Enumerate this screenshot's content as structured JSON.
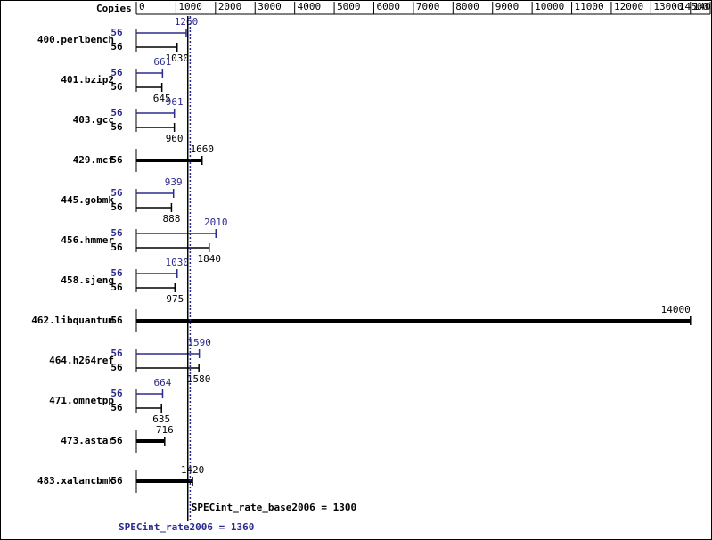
{
  "chart_data": {
    "type": "bar",
    "orientation": "horizontal",
    "copies_label": "Copies",
    "categories": [
      "400.perlbench",
      "401.bzip2",
      "403.gcc",
      "429.mcf",
      "445.gobmk",
      "456.hmmer",
      "458.sjeng",
      "462.libquantum",
      "464.h264ref",
      "471.omnetpp",
      "473.astar",
      "483.xalancbmk"
    ],
    "series": [
      {
        "color": "#2b2b8f",
        "copies": [
          56,
          56,
          56,
          null,
          56,
          56,
          56,
          null,
          56,
          56,
          null,
          null
        ],
        "values": [
          1260,
          661,
          961,
          null,
          939,
          2010,
          1030,
          null,
          1590,
          664,
          null,
          null
        ]
      },
      {
        "color": "#000000",
        "copies": [
          56,
          56,
          56,
          56,
          56,
          56,
          56,
          56,
          56,
          56,
          56,
          56
        ],
        "values": [
          1030,
          645,
          960,
          1660,
          888,
          1840,
          975,
          14000,
          1580,
          635,
          716,
          1420
        ]
      }
    ],
    "references": [
      {
        "label": "SPECint_rate_base2006 = 1300",
        "value": 1300,
        "color": "#000000",
        "dash": false
      },
      {
        "label": "SPECint_rate2006 = 1360",
        "value": 1360,
        "color": "#2b2b8f",
        "dash": true
      }
    ],
    "xlim": [
      0,
      14500
    ],
    "xticks": [
      0,
      1000,
      2000,
      3000,
      4000,
      5000,
      6000,
      7000,
      8000,
      9000,
      10000,
      11000,
      12000,
      13000,
      14000,
      14500
    ]
  }
}
